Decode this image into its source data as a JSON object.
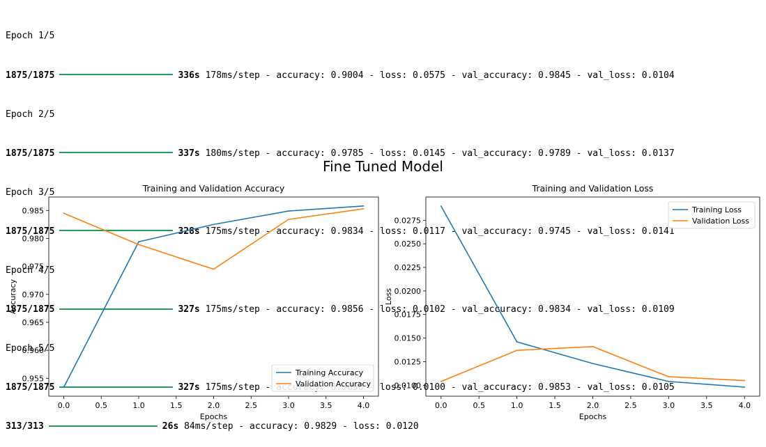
{
  "log": {
    "epochs": [
      {
        "epoch": "Epoch 1/5",
        "steps": "1875/1875",
        "time": "336s",
        "rest": "178ms/step - accuracy: 0.9004 - loss: 0.0575 - val_accuracy: 0.9845 - val_loss: 0.0104"
      },
      {
        "epoch": "Epoch 2/5",
        "steps": "1875/1875",
        "time": "337s",
        "rest": "180ms/step - accuracy: 0.9785 - loss: 0.0145 - val_accuracy: 0.9789 - val_loss: 0.0137"
      },
      {
        "epoch": "Epoch 3/5",
        "steps": "1875/1875",
        "time": "328s",
        "rest": "175ms/step - accuracy: 0.9834 - loss: 0.0117 - val_accuracy: 0.9745 - val_loss: 0.0141"
      },
      {
        "epoch": "Epoch 4/5",
        "steps": "1875/1875",
        "time": "327s",
        "rest": "175ms/step - accuracy: 0.9856 - loss: 0.0102 - val_accuracy: 0.9834 - val_loss: 0.0109"
      },
      {
        "epoch": "Epoch 5/5",
        "steps": "1875/1875",
        "time": "327s",
        "rest": "175ms/step - accuracy: 0.9850 - loss: 0.0100 - val_accuracy: 0.9853 - val_loss: 0.0105"
      }
    ],
    "evaluation": {
      "steps": "313/313",
      "time": "26s",
      "rest": "84ms/step - accuracy: 0.9829 - loss: 0.0120"
    },
    "bar_color": "#1f9d55"
  },
  "suptitle": "Fine Tuned Model",
  "chart_data": [
    {
      "type": "line",
      "title": "Training and Validation Accuracy",
      "xlabel": "Epochs",
      "ylabel": "Accuracy",
      "x": [
        0,
        1,
        2,
        3,
        4
      ],
      "series": [
        {
          "name": "Training Accuracy",
          "color": "#1f77b4",
          "values": [
            0.9534,
            0.9794,
            0.9825,
            0.9849,
            0.9858
          ]
        },
        {
          "name": "Validation Accuracy",
          "color": "#ff7f0e",
          "values": [
            0.9845,
            0.9789,
            0.9745,
            0.9834,
            0.9853
          ]
        }
      ],
      "xlim": [
        -0.2,
        4.2
      ],
      "ylim": [
        0.9518,
        0.9874
      ],
      "xticks": [
        0.0,
        0.5,
        1.0,
        1.5,
        2.0,
        2.5,
        3.0,
        3.5,
        4.0
      ],
      "xtick_labels": [
        "0.0",
        "0.5",
        "1.0",
        "1.5",
        "2.0",
        "2.5",
        "3.0",
        "3.5",
        "4.0"
      ],
      "yticks": [
        0.955,
        0.96,
        0.965,
        0.97,
        0.975,
        0.98,
        0.985
      ],
      "ytick_labels": [
        "0.955",
        "0.960",
        "0.965",
        "0.970",
        "0.975",
        "0.980",
        "0.985"
      ],
      "grid": false,
      "legend": "lower-right"
    },
    {
      "type": "line",
      "title": "Training and Validation Loss",
      "xlabel": "Epochs",
      "ylabel": "Loss",
      "x": [
        0,
        1,
        2,
        3,
        4
      ],
      "series": [
        {
          "name": "Training Loss",
          "color": "#1f77b4",
          "values": [
            0.029,
            0.0146,
            0.0123,
            0.0104,
            0.0098
          ]
        },
        {
          "name": "Validation Loss",
          "color": "#ff7f0e",
          "values": [
            0.0104,
            0.0137,
            0.0141,
            0.0109,
            0.0105
          ]
        }
      ],
      "xlim": [
        -0.2,
        4.2
      ],
      "ylim": [
        0.00884,
        0.02996
      ],
      "xticks": [
        0.0,
        0.5,
        1.0,
        1.5,
        2.0,
        2.5,
        3.0,
        3.5,
        4.0
      ],
      "xtick_labels": [
        "0.0",
        "0.5",
        "1.0",
        "1.5",
        "2.0",
        "2.5",
        "3.0",
        "3.5",
        "4.0"
      ],
      "yticks": [
        0.01,
        0.0125,
        0.015,
        0.0175,
        0.02,
        0.0225,
        0.025,
        0.0275
      ],
      "ytick_labels": [
        "0.0100",
        "0.0125",
        "0.0150",
        "0.0175",
        "0.0200",
        "0.0225",
        "0.0250",
        "0.0275"
      ],
      "grid": false,
      "legend": "upper-right"
    }
  ]
}
